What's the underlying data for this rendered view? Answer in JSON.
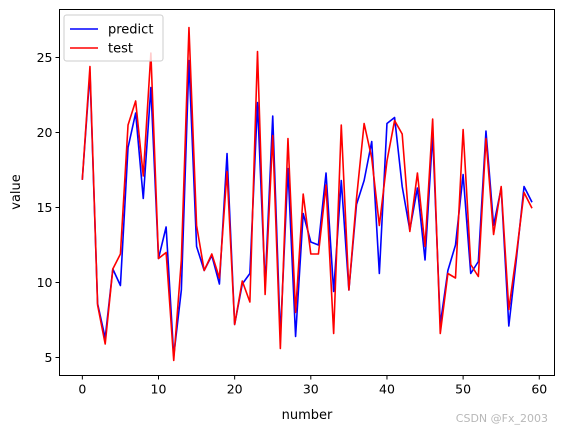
{
  "chart_data": {
    "type": "line",
    "xlabel": "number",
    "ylabel": "value",
    "xlim": [
      -3,
      62
    ],
    "ylim": [
      3.8,
      28.2
    ],
    "xticks": [
      0,
      10,
      20,
      30,
      40,
      50,
      60
    ],
    "yticks": [
      5,
      10,
      15,
      20,
      25
    ],
    "grid": false,
    "legend_position": "top-left",
    "series": [
      {
        "name": "predict",
        "color": "#0000ff",
        "values": [
          16.9,
          24.0,
          8.6,
          6.3,
          10.9,
          9.8,
          19.0,
          21.3,
          15.6,
          23.0,
          11.6,
          13.7,
          5.1,
          9.5,
          24.8,
          12.4,
          10.8,
          11.8,
          9.9,
          18.6,
          7.2,
          9.9,
          10.6,
          22.0,
          9.8,
          21.1,
          6.4,
          17.6,
          6.4,
          14.6,
          12.7,
          12.5,
          17.3,
          9.4,
          16.8,
          9.5,
          15.2,
          16.8,
          19.4,
          10.6,
          20.6,
          21.0,
          16.4,
          13.5,
          16.3,
          11.5,
          19.9,
          7.2,
          10.8,
          12.5,
          17.2,
          10.6,
          11.4,
          20.1,
          13.8,
          16.3,
          7.1,
          11.6,
          16.4,
          15.4
        ]
      },
      {
        "name": "test",
        "color": "#ff0000",
        "values": [
          16.9,
          24.4,
          8.5,
          5.9,
          10.9,
          11.9,
          20.5,
          22.1,
          17.1,
          25.3,
          11.6,
          12.0,
          4.8,
          11.5,
          27.0,
          13.8,
          10.8,
          11.9,
          10.3,
          17.4,
          7.2,
          10.1,
          8.7,
          25.4,
          9.2,
          19.8,
          5.6,
          19.6,
          8.0,
          15.9,
          11.9,
          11.9,
          16.5,
          6.6,
          20.5,
          9.5,
          15.6,
          20.6,
          18.3,
          13.8,
          18.1,
          20.8,
          19.9,
          13.4,
          17.3,
          12.4,
          20.9,
          6.6,
          10.6,
          10.3,
          20.2,
          11.2,
          10.4,
          19.6,
          13.2,
          16.4,
          8.2,
          11.9,
          16.0,
          15.0
        ]
      }
    ]
  },
  "watermark": "CSDN @Fx_2003"
}
